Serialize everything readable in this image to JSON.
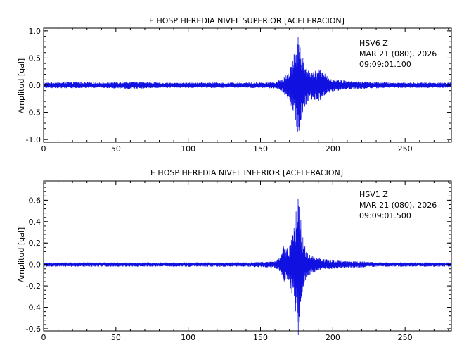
{
  "chart_data": [
    {
      "type": "line",
      "title": "E HOSP HEREDIA NIVEL SUPERIOR [ACELERACION]",
      "xlabel": "",
      "ylabel": "Amplitud [gal]",
      "xlim": [
        0,
        282
      ],
      "ylim": [
        -1.05,
        1.05
      ],
      "x_ticks": [
        0,
        50,
        100,
        150,
        200,
        250
      ],
      "y_ticks": [
        -1.0,
        -0.5,
        0.0,
        0.5,
        1.0
      ],
      "y_tick_labels": [
        "-1.0",
        "-0.5",
        "0.0",
        "0.5",
        "1.0"
      ],
      "annotation": {
        "station": "HSV6   Z",
        "date": "MAR 21 (080), 2026",
        "time": "09:09:01.100"
      },
      "series": [
        {
          "color": "#1010e0",
          "x": [
            0,
            20,
            40,
            60,
            80,
            100,
            120,
            140,
            160,
            165,
            168,
            170,
            172,
            174,
            175,
            176,
            177,
            178,
            179,
            180,
            182,
            184,
            186,
            188,
            190,
            193,
            196,
            200,
            205,
            210,
            220,
            230,
            240,
            250,
            260,
            270,
            282
          ],
          "y_envelope": [
            0.05,
            0.06,
            0.05,
            0.07,
            0.05,
            0.05,
            0.05,
            0.05,
            0.06,
            0.12,
            0.22,
            0.3,
            0.45,
            0.65,
            0.8,
            0.97,
            0.95,
            0.75,
            0.55,
            0.45,
            0.35,
            0.3,
            0.25,
            0.28,
            0.32,
            0.25,
            0.18,
            0.12,
            0.1,
            0.08,
            0.07,
            0.06,
            0.05,
            0.05,
            0.05,
            0.05,
            0.05
          ]
        }
      ]
    },
    {
      "type": "line",
      "title": "E HOSP HEREDIA NIVEL INFERIOR [ACELERACION]",
      "xlabel": "",
      "ylabel": "Amplitud [gal]",
      "xlim": [
        0,
        282
      ],
      "ylim": [
        -0.62,
        0.78
      ],
      "x_ticks": [
        0,
        50,
        100,
        150,
        200,
        250
      ],
      "y_ticks": [
        -0.6,
        -0.4,
        -0.2,
        0.0,
        0.2,
        0.4,
        0.6
      ],
      "y_tick_labels": [
        "-0.6",
        "-0.4",
        "-0.2",
        "-0.0",
        "0.2",
        "0.4",
        "0.6"
      ],
      "annotation": {
        "station": "HSV1   Z",
        "date": "MAR 21 (080), 2026",
        "time": "09:09:01.500"
      },
      "series": [
        {
          "color": "#1010e0",
          "x": [
            0,
            20,
            40,
            60,
            80,
            100,
            120,
            140,
            160,
            164,
            166,
            168,
            170,
            172,
            174,
            175,
            176,
            177,
            178,
            179,
            180,
            182,
            185,
            188,
            190,
            195,
            200,
            210,
            220,
            230,
            240,
            250,
            260,
            270,
            282
          ],
          "y_envelope": [
            0.02,
            0.02,
            0.02,
            0.02,
            0.02,
            0.02,
            0.02,
            0.02,
            0.03,
            0.08,
            0.2,
            0.15,
            0.18,
            0.3,
            0.42,
            0.56,
            0.73,
            0.6,
            0.4,
            0.28,
            0.2,
            0.12,
            0.09,
            0.07,
            0.06,
            0.05,
            0.04,
            0.03,
            0.03,
            0.02,
            0.02,
            0.02,
            0.02,
            0.02,
            0.02
          ]
        }
      ]
    }
  ]
}
